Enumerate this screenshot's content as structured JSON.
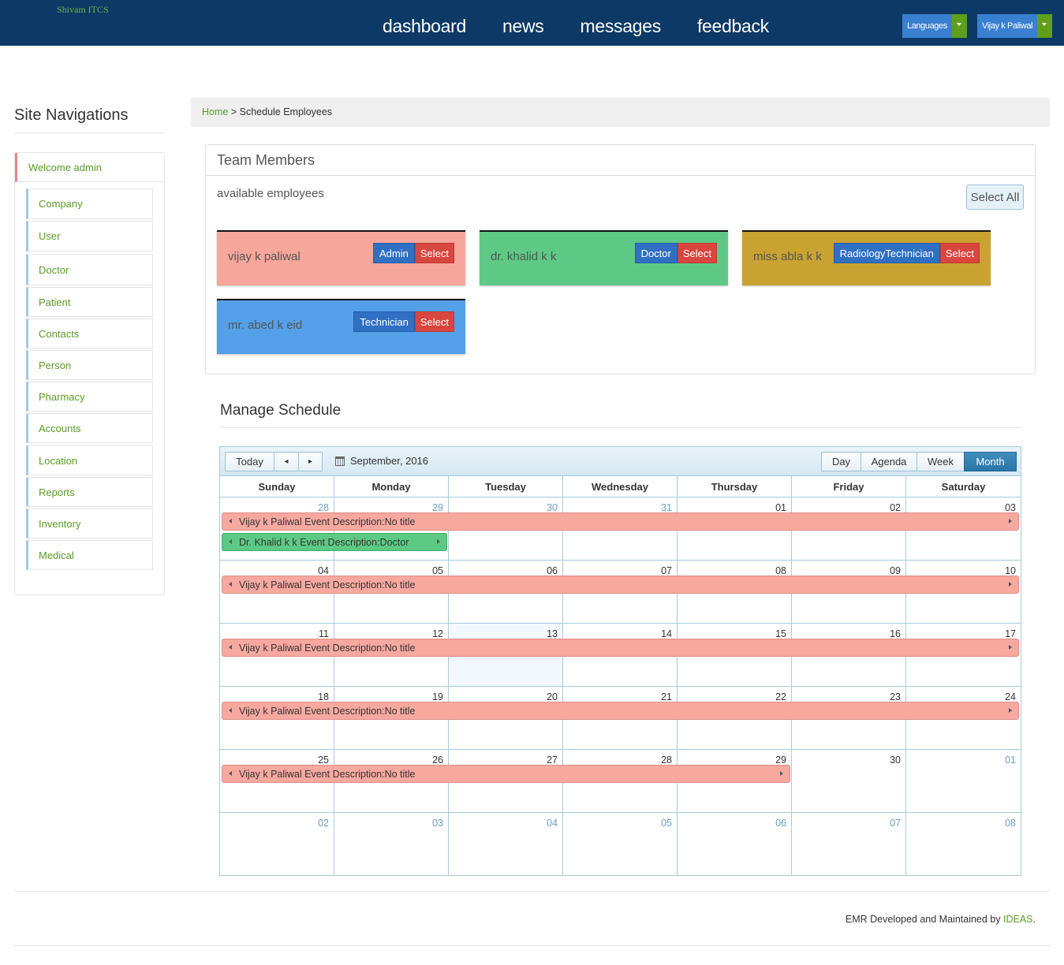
{
  "header": {
    "brand": "Shivam ITCS",
    "nav": [
      "dashboard",
      "news",
      "messages",
      "feedback"
    ],
    "languages_label": "Languages",
    "user_label": "Vijay k Paliwal"
  },
  "sidebar": {
    "title": "Site Navigations",
    "welcome": "Welcome admin",
    "items": [
      "Company",
      "User",
      "Doctor",
      "Patient",
      "Contacts",
      "Person",
      "Pharmacy",
      "Accounts",
      "Location",
      "Reports",
      "Inventory",
      "Medical"
    ]
  },
  "breadcrumb": {
    "home": "Home",
    "separator": ">",
    "current": "Schedule Employees"
  },
  "team": {
    "title": "Team Members",
    "subtitle": "available employees",
    "select_all": "Select All",
    "select_label": "Select",
    "members": [
      {
        "name": "vijay k paliwal",
        "role": "Admin",
        "color": "#f7a69b"
      },
      {
        "name": "dr. khalid k k",
        "role": "Doctor",
        "color": "#5dc985"
      },
      {
        "name": "miss abla k k",
        "role": "RadiologyTechnician",
        "color": "#c9a232"
      },
      {
        "name": "mr. abed k eid",
        "role": "Technician",
        "color": "#54a0e8"
      }
    ]
  },
  "schedule": {
    "title": "Manage Schedule",
    "toolbar": {
      "today": "Today",
      "prev": "◂",
      "next": "▸",
      "date": "September, 2016"
    },
    "views": [
      "Day",
      "Agenda",
      "Week",
      "Month"
    ],
    "active_view": "Month",
    "weekdays": [
      "Sunday",
      "Monday",
      "Tuesday",
      "Wednesday",
      "Thursday",
      "Friday",
      "Saturday"
    ],
    "weeks": [
      [
        "28",
        "29",
        "30",
        "31",
        "01",
        "02",
        "03"
      ],
      [
        "04",
        "05",
        "06",
        "07",
        "08",
        "09",
        "10"
      ],
      [
        "11",
        "12",
        "13",
        "14",
        "15",
        "16",
        "17"
      ],
      [
        "18",
        "19",
        "20",
        "21",
        "22",
        "23",
        "24"
      ],
      [
        "25",
        "26",
        "27",
        "28",
        "29",
        "30",
        "01"
      ],
      [
        "02",
        "03",
        "04",
        "05",
        "06",
        "07",
        "08"
      ]
    ],
    "today": "13",
    "events": [
      {
        "week": 0,
        "start": 0,
        "end": 6,
        "slot": 0,
        "color": "pink",
        "text": "Vijay k Paliwal Event Description:No title"
      },
      {
        "week": 0,
        "start": 0,
        "end": 1,
        "slot": 1,
        "color": "green",
        "text": "Dr. Khalid k k Event Description:Doctor"
      },
      {
        "week": 1,
        "start": 0,
        "end": 6,
        "slot": 0,
        "color": "pink",
        "text": "Vijay k Paliwal Event Description:No title"
      },
      {
        "week": 2,
        "start": 0,
        "end": 6,
        "slot": 0,
        "color": "pink",
        "text": "Vijay k Paliwal Event Description:No title"
      },
      {
        "week": 3,
        "start": 0,
        "end": 6,
        "slot": 0,
        "color": "pink",
        "text": "Vijay k Paliwal Event Description:No title"
      },
      {
        "week": 4,
        "start": 0,
        "end": 4,
        "slot": 0,
        "color": "pink",
        "text": "Vijay k Paliwal Event Description:No title"
      }
    ]
  },
  "footer": {
    "text": "EMR Developed and Maintained by",
    "link": "IDEAS",
    "period": "."
  }
}
